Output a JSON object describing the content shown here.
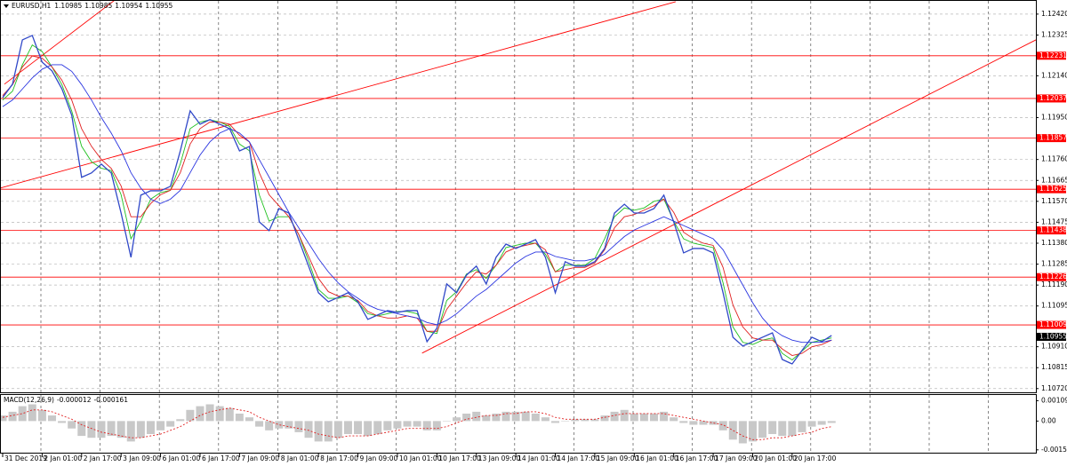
{
  "chart_data": [
    {
      "type": "line",
      "title": "EURUSD,H1",
      "ohlc": [
        1.10985,
        1.10985,
        1.10954,
        1.10955
      ],
      "categories": [
        "31 Dec 2019",
        null,
        null,
        null,
        "2 Jan 01:00",
        null,
        null,
        null,
        "2 Jan 17:00",
        null,
        null,
        null,
        "3 Jan 09:00",
        null,
        null,
        null,
        "6 Jan 01:00",
        null,
        null,
        null,
        "6 Jan 17:00",
        null,
        null,
        null,
        "7 Jan 09:00",
        null,
        null,
        null,
        "8 Jan 01:00",
        null,
        null,
        null,
        "8 Jan 17:00",
        null,
        null,
        null,
        "9 Jan 09:00",
        null,
        null,
        null,
        "10 Jan 01:00",
        null,
        null,
        null,
        "10 Jan 17:00",
        null,
        null,
        null,
        "13 Jan 09:00",
        null,
        null,
        null,
        "14 Jan 01:00",
        null,
        null,
        null,
        "14 Jan 17:00",
        null,
        null,
        null,
        "15 Jan 09:00",
        null,
        null,
        null,
        "16 Jan 01:00",
        null,
        null,
        null,
        "16 Jan 17:00",
        null,
        null,
        null,
        "17 Jan 09:00",
        null,
        null,
        null,
        "20 Jan 01:00",
        null,
        null,
        null,
        "20 Jan 17:00",
        null,
        null,
        null,
        null
      ],
      "series": [
        {
          "color": "#3048c8",
          "width": 1.3,
          "values": [
            1.12041,
            1.12102,
            1.12303,
            1.12323,
            1.12202,
            1.12162,
            1.12081,
            1.11961,
            1.11679,
            1.11699,
            1.11739,
            1.11699,
            1.11517,
            1.11316,
            1.11598,
            1.11618,
            1.11618,
            1.11638,
            1.11799,
            1.11981,
            1.1192,
            1.11941,
            1.1192,
            1.119,
            1.11799,
            1.11819,
            1.11477,
            1.11437,
            1.11537,
            1.11517,
            1.11396,
            1.11276,
            1.11155,
            1.11114,
            1.11134,
            1.11155,
            1.11114,
            1.11034,
            1.11054,
            1.11074,
            1.11066,
            1.11074,
            1.11074,
            1.10933,
            1.10994,
            1.11195,
            1.11155,
            1.11235,
            1.11276,
            1.11195,
            1.11316,
            1.11376,
            1.11356,
            1.11376,
            1.11396,
            1.11316,
            1.11155,
            1.11296,
            1.11276,
            1.11276,
            1.11296,
            1.11356,
            1.11517,
            1.11557,
            1.11517,
            1.11517,
            1.11537,
            1.11598,
            1.11477,
            1.11336,
            1.11356,
            1.11356,
            1.11336,
            1.11155,
            1.10953,
            1.10913,
            1.10933,
            1.10953,
            1.10973,
            1.10852,
            1.10832,
            1.10893,
            1.10953,
            1.10933,
            1.10961
          ]
        },
        {
          "color": "#2a35e0",
          "width": 0.9,
          "values": [
            1.12,
            1.1203,
            1.1208,
            1.1213,
            1.1217,
            1.1219,
            1.1219,
            1.1216,
            1.121,
            1.1203,
            1.1195,
            1.1188,
            1.118,
            1.117,
            1.1163,
            1.1158,
            1.1156,
            1.1158,
            1.1162,
            1.117,
            1.1178,
            1.1184,
            1.1188,
            1.119,
            1.1188,
            1.1184,
            1.1176,
            1.1168,
            1.116,
            1.1152,
            1.1145,
            1.1138,
            1.1131,
            1.1125,
            1.112,
            1.1116,
            1.1113,
            1.111,
            1.1108,
            1.1107,
            1.1106,
            1.1105,
            1.1104,
            1.1102,
            1.1101,
            1.1103,
            1.1106,
            1.111,
            1.1114,
            1.1117,
            1.1121,
            1.1125,
            1.1129,
            1.1132,
            1.1134,
            1.1134,
            1.1132,
            1.1131,
            1.113,
            1.113,
            1.1131,
            1.1133,
            1.1137,
            1.1141,
            1.1144,
            1.1146,
            1.1148,
            1.115,
            1.1148,
            1.1146,
            1.1144,
            1.1142,
            1.114,
            1.1135,
            1.1127,
            1.1119,
            1.1111,
            1.1104,
            1.1099,
            1.1096,
            1.1094,
            1.1093,
            1.1093,
            1.1093,
            1.1094
          ]
        },
        {
          "color": "#e02020",
          "width": 0.9,
          "values": [
            1.1205,
            1.121,
            1.1218,
            1.1223,
            1.1222,
            1.1218,
            1.1212,
            1.1203,
            1.119,
            1.1182,
            1.1176,
            1.1172,
            1.1164,
            1.115,
            1.115,
            1.1156,
            1.116,
            1.1162,
            1.117,
            1.1183,
            1.119,
            1.1193,
            1.1193,
            1.1192,
            1.1187,
            1.1184,
            1.117,
            1.116,
            1.1155,
            1.115,
            1.1142,
            1.1132,
            1.1122,
            1.1116,
            1.1114,
            1.1114,
            1.1112,
            1.1107,
            1.1105,
            1.1104,
            1.1104,
            1.1105,
            1.1104,
            1.1098,
            1.1098,
            1.1108,
            1.1114,
            1.112,
            1.1125,
            1.1124,
            1.1128,
            1.1134,
            1.1136,
            1.1137,
            1.1138,
            1.1135,
            1.1125,
            1.1126,
            1.1127,
            1.1127,
            1.1129,
            1.1135,
            1.1145,
            1.115,
            1.1151,
            1.1153,
            1.1155,
            1.1158,
            1.1152,
            1.1143,
            1.114,
            1.1138,
            1.1137,
            1.1127,
            1.111,
            1.11,
            1.1095,
            1.1094,
            1.1094,
            1.109,
            1.1087,
            1.1088,
            1.1091,
            1.1092,
            1.1094
          ]
        },
        {
          "color": "#20c020",
          "width": 0.9,
          "values": [
            1.1203,
            1.1207,
            1.1219,
            1.1228,
            1.1225,
            1.1218,
            1.121,
            1.1198,
            1.1182,
            1.1175,
            1.1172,
            1.1171,
            1.116,
            1.114,
            1.1148,
            1.1158,
            1.1161,
            1.1162,
            1.1174,
            1.119,
            1.1193,
            1.1194,
            1.1193,
            1.1191,
            1.1183,
            1.118,
            1.116,
            1.1148,
            1.115,
            1.115,
            1.1142,
            1.113,
            1.1117,
            1.1113,
            1.1113,
            1.1114,
            1.1111,
            1.1106,
            1.1105,
            1.1106,
            1.1107,
            1.1107,
            1.1106,
            1.1098,
            1.1097,
            1.1112,
            1.1116,
            1.1124,
            1.1126,
            1.1122,
            1.1128,
            1.1136,
            1.1137,
            1.1138,
            1.1138,
            1.1133,
            1.1125,
            1.1128,
            1.1128,
            1.1128,
            1.1131,
            1.114,
            1.115,
            1.1154,
            1.1153,
            1.1154,
            1.1157,
            1.1158,
            1.1148,
            1.114,
            1.1138,
            1.1137,
            1.1136,
            1.112,
            1.11,
            1.1093,
            1.1092,
            1.1094,
            1.1095,
            1.1088,
            1.1085,
            1.1089,
            1.1093,
            1.1094,
            1.1095
          ]
        }
      ],
      "levels": [
        1.12231,
        1.12037,
        1.11857,
        1.11625,
        1.11438,
        1.11226,
        1.11009
      ],
      "level_color": "#ff0000",
      "current_price": 1.10955,
      "trendlines": [
        {
          "x": [
            -0.27,
            68.2
          ],
          "y": [
            1.1163,
            1.12476
          ]
        },
        {
          "x": [
            0.18,
            11.4
          ],
          "y": [
            1.12102,
            1.12485
          ]
        },
        {
          "x": [
            42.5,
            104.7
          ],
          "y": [
            1.10881,
            1.12303
          ]
        }
      ],
      "xlim": [
        -0.27,
        104.7
      ],
      "ylim": [
        1.10703,
        1.12484
      ],
      "yticks": [
        {
          "value": 1.1242,
          "label": "1.12420"
        },
        1.12325,
        {
          "value": 1.1214,
          "label": "1.12140"
        },
        {
          "value": 1.1195,
          "label": "1.11950"
        },
        {
          "value": 1.1176,
          "label": "1.11760"
        },
        1.11665,
        {
          "value": 1.1157,
          "label": "1.11570"
        },
        1.11475,
        {
          "value": 1.1138,
          "label": "1.11380"
        },
        1.11285,
        {
          "value": 1.1119,
          "label": "1.11190"
        },
        1.11095,
        {
          "value": 1.1091,
          "label": "1.10910"
        },
        1.10815,
        {
          "value": 1.1072,
          "label": "1.10720"
        }
      ],
      "grid": true
    },
    {
      "type": "macd",
      "title": "MACD(12,26,9)",
      "readout": [
        -1.2e-05,
        -0.000161
      ],
      "histogram_color": "#c8c8c8",
      "signal_color": "#e02020",
      "values": [
        0.0003,
        0.0005,
        0.0008,
        0.0009,
        0.0006,
        0.0003,
        -0.0001,
        -0.0004,
        -0.0008,
        -0.0009,
        -0.0009,
        -0.0008,
        -0.0009,
        -0.0011,
        -0.0009,
        -0.0007,
        -0.0005,
        -0.0003,
        0.0001,
        0.0006,
        0.0008,
        0.0009,
        0.0008,
        0.0007,
        0.0004,
        0.0002,
        -0.0003,
        -0.0005,
        -0.0004,
        -0.0004,
        -0.0006,
        -0.0009,
        -0.0011,
        -0.0011,
        -0.0009,
        -0.0007,
        -0.0007,
        -0.0008,
        -0.0007,
        -0.0005,
        -0.0004,
        -0.0003,
        -0.0003,
        -0.0005,
        -0.0005,
        0,
        0.0002,
        0.0004,
        0.0005,
        0.0003,
        0.0004,
        0.0005,
        0.0005,
        0.0005,
        0.0004,
        0.0002,
        -0.0001,
        0,
        0.0001,
        0.0001,
        0.0001,
        0.0003,
        0.0005,
        0.0006,
        0.0004,
        0.0004,
        0.0004,
        0.0005,
        0.0002,
        -0.0001,
        -0.0002,
        -0.0002,
        -0.0002,
        -0.0005,
        -0.001,
        -0.0012,
        -0.0011,
        -0.0009,
        -0.0007,
        -0.0008,
        -0.0008,
        -0.0006,
        -0.0003,
        -0.0002,
        -0.0001
      ],
      "signal": [
        0.0002,
        0.0003,
        0.0004,
        0.0006,
        0.0006,
        0.0005,
        0.0003,
        0.0001,
        -0.0002,
        -0.0004,
        -0.0006,
        -0.0007,
        -0.0008,
        -0.0009,
        -0.0009,
        -0.0008,
        -0.0007,
        -0.0005,
        -0.0003,
        0,
        0.0003,
        0.0005,
        0.0006,
        0.0007,
        0.0006,
        0.0005,
        0.0002,
        0,
        -0.0002,
        -0.0003,
        -0.0004,
        -0.0005,
        -0.0007,
        -0.0008,
        -0.0009,
        -0.0008,
        -0.0008,
        -0.0008,
        -0.0007,
        -0.0006,
        -0.0005,
        -0.0004,
        -0.0004,
        -0.0004,
        -0.0004,
        -0.0003,
        -0.0001,
        0.0001,
        0.0002,
        0.0003,
        0.0003,
        0.0004,
        0.0004,
        0.0005,
        0.0005,
        0.0004,
        0.0002,
        0.0001,
        0.0001,
        0.0001,
        0.0001,
        0.0002,
        0.0003,
        0.0004,
        0.0004,
        0.0004,
        0.0004,
        0.0004,
        0.0003,
        0.0002,
        0.0001,
        0,
        -0.0001,
        -0.0002,
        -0.0005,
        -0.0008,
        -0.001,
        -0.001,
        -0.0009,
        -0.0009,
        -0.0008,
        -0.0007,
        -0.0006,
        -0.0004,
        -0.0003
      ],
      "ylim": [
        -0.00175,
        0.00145
      ],
      "yticks": [
        0.001096,
        {
          "value": 0,
          "label": "0.00"
        },
        -0.00155
      ]
    }
  ]
}
